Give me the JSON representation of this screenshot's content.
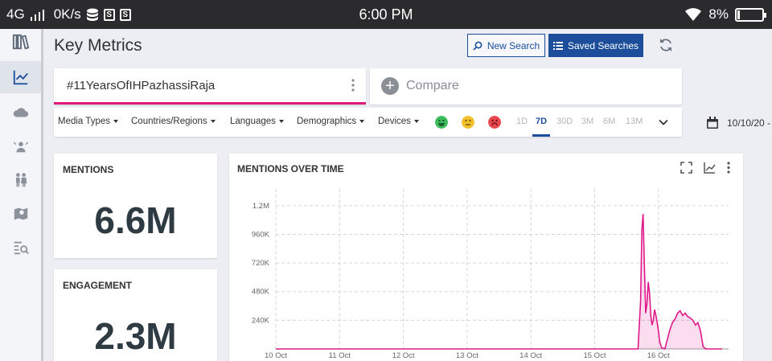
{
  "status_bar": {
    "network": "4G",
    "speed": "0K/s",
    "time": "6:00 PM",
    "battery": "8%"
  },
  "sidebar": {
    "items": [
      {
        "icon": "library-icon"
      },
      {
        "icon": "trend-chart-icon",
        "active": true
      },
      {
        "icon": "cloud-icon"
      },
      {
        "icon": "influencer-icon"
      },
      {
        "icon": "people-icon"
      },
      {
        "icon": "map-icon"
      },
      {
        "icon": "search-list-icon"
      }
    ]
  },
  "header": {
    "title": "Key Metrics",
    "new_search": "New Search",
    "saved_searches": "Saved Searches"
  },
  "search": {
    "query": "#11YearsOfIHPazhassiRaja",
    "compare_label": "Compare"
  },
  "filters": {
    "items": [
      "Media Types",
      "Countries/Regions",
      "Languages",
      "Demographics",
      "Devices"
    ],
    "sentiment_colors": {
      "positive": "#3cbd5d",
      "neutral": "#f2c12e",
      "negative": "#e8484e"
    },
    "ranges": [
      "1D",
      "7D",
      "30D",
      "3M",
      "6M",
      "13M"
    ],
    "selected_range": "7D",
    "date": "10/10/20 -"
  },
  "metrics": {
    "mentions": {
      "label": "MENTIONS",
      "value": "6.6M"
    },
    "engagement": {
      "label": "ENGAGEMENT",
      "value": "2.3M"
    }
  },
  "chart": {
    "title": "MENTIONS OVER TIME",
    "line_color": "#e0198a"
  },
  "chart_data": {
    "type": "area",
    "title": "MENTIONS OVER TIME",
    "xlabel": "",
    "ylabel": "",
    "x_ticks": [
      "10 Oct",
      "11 Oct",
      "12 Oct",
      "13 Oct",
      "14 Oct",
      "15 Oct",
      "16 Oct"
    ],
    "y_ticks": [
      "1.2M",
      "960K",
      "720K",
      "480K",
      "240K"
    ],
    "y_tick_values": [
      1200000,
      960000,
      720000,
      480000,
      240000
    ],
    "xlim": [
      0,
      7.1
    ],
    "ylim": [
      0,
      1320000
    ],
    "grid": true,
    "series": [
      {
        "x": [
          0,
          1,
          2,
          3,
          4,
          5,
          5.6,
          5.68,
          5.72,
          5.74,
          5.76,
          5.78,
          5.8,
          5.82,
          5.84,
          5.86,
          5.88,
          5.9,
          5.92,
          5.94,
          5.96,
          5.98,
          6.0,
          6.02,
          6.05,
          6.1,
          6.14,
          6.18,
          6.22,
          6.26,
          6.3,
          6.34,
          6.38,
          6.42,
          6.46,
          6.5,
          6.54,
          6.58,
          6.62,
          6.66,
          6.7,
          6.74,
          6.78,
          6.82,
          6.9,
          7.0
        ],
        "values": [
          0,
          0,
          0,
          0,
          0,
          0,
          0,
          0,
          400000,
          1000000,
          1130000,
          700000,
          300000,
          380000,
          560000,
          470000,
          280000,
          200000,
          240000,
          330000,
          280000,
          220000,
          150000,
          60000,
          10000,
          0,
          80000,
          160000,
          220000,
          250000,
          300000,
          320000,
          280000,
          300000,
          270000,
          260000,
          240000,
          200000,
          220000,
          150000,
          20000,
          0,
          0,
          0,
          0,
          0
        ]
      }
    ]
  }
}
